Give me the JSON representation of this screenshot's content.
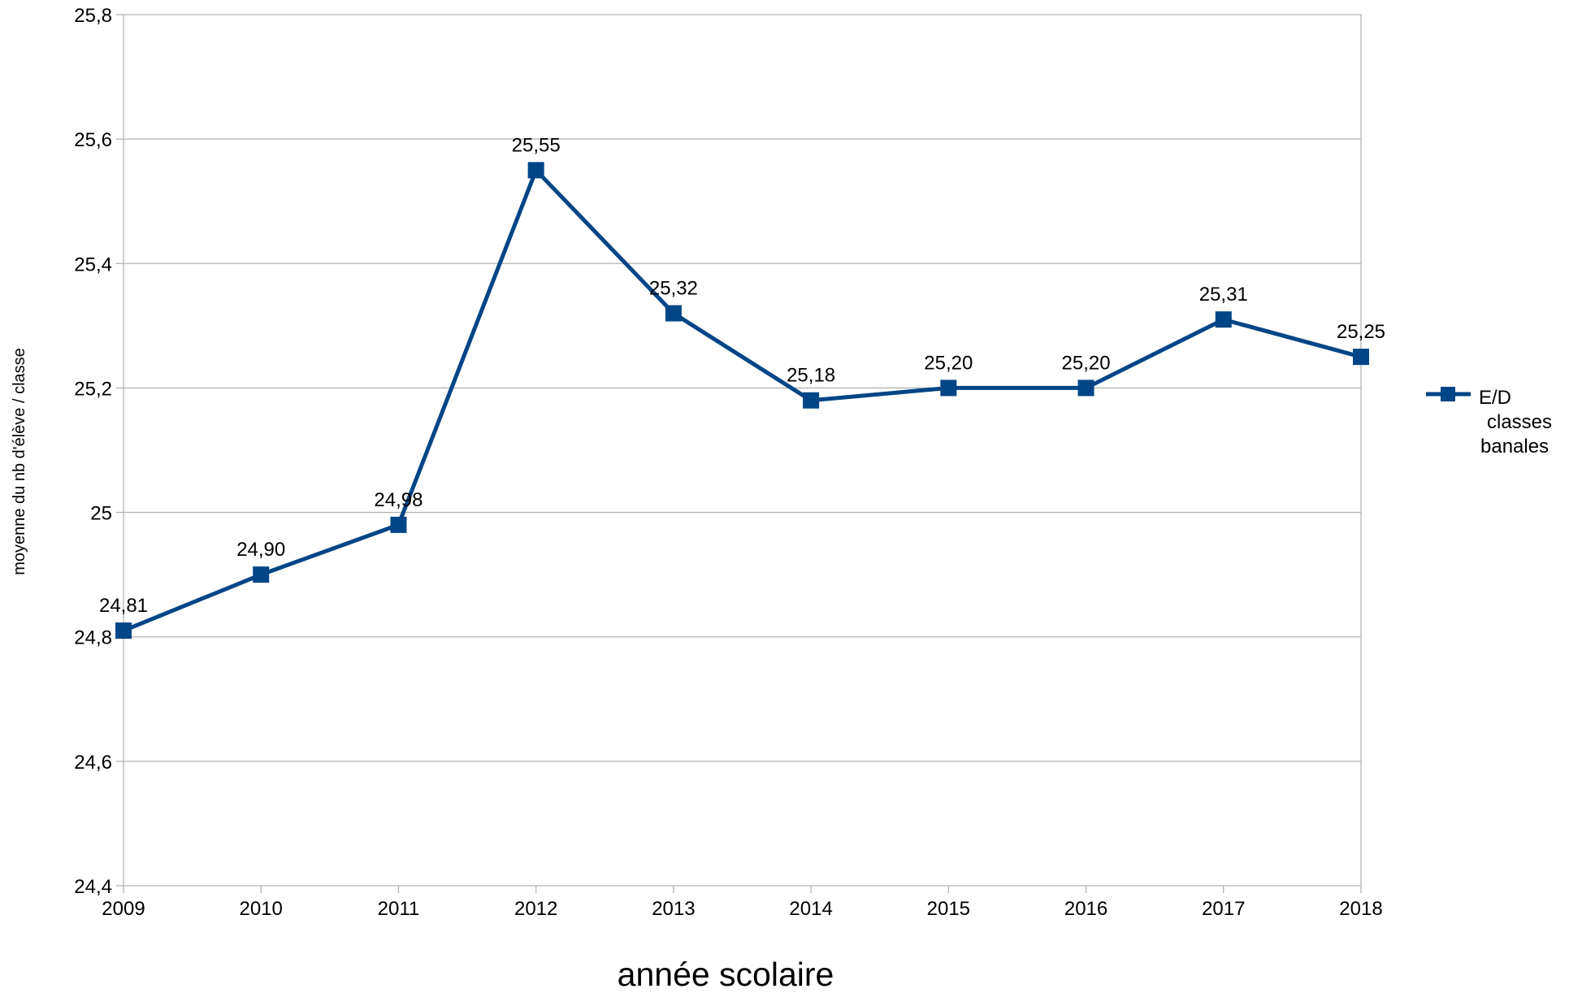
{
  "chart_data": {
    "type": "line",
    "x": [
      "2009",
      "2010",
      "2011",
      "2012",
      "2013",
      "2014",
      "2015",
      "2016",
      "2017",
      "2018"
    ],
    "series": [
      {
        "name": "E/D classes banales",
        "name_lines": [
          "E/D",
          "classes",
          "banales"
        ],
        "values": [
          24.81,
          24.9,
          24.98,
          25.55,
          25.32,
          25.18,
          25.2,
          25.2,
          25.31,
          25.25
        ],
        "data_labels": [
          "24,81",
          "24,90",
          "24,98",
          "25,55",
          "25,32",
          "25,18",
          "25,20",
          "25,20",
          "25,31",
          "25,25"
        ],
        "color": "#004586",
        "marker": "square"
      }
    ],
    "ylim": [
      24.4,
      25.8
    ],
    "yticks": [
      24.4,
      24.6,
      24.8,
      25.0,
      25.2,
      25.4,
      25.6,
      25.8
    ],
    "ytick_labels": [
      "24,4",
      "24,6",
      "24,8",
      "25",
      "25,2",
      "25,4",
      "25,6",
      "25,8"
    ],
    "xlabel": "année scolaire",
    "ylabel": "moyenne du nb d'élève / classe",
    "grid": true,
    "legend_position": "right",
    "colors": {
      "grid": "#b3b3b3",
      "axis": "#b3b3b3",
      "series": "#004586"
    }
  }
}
